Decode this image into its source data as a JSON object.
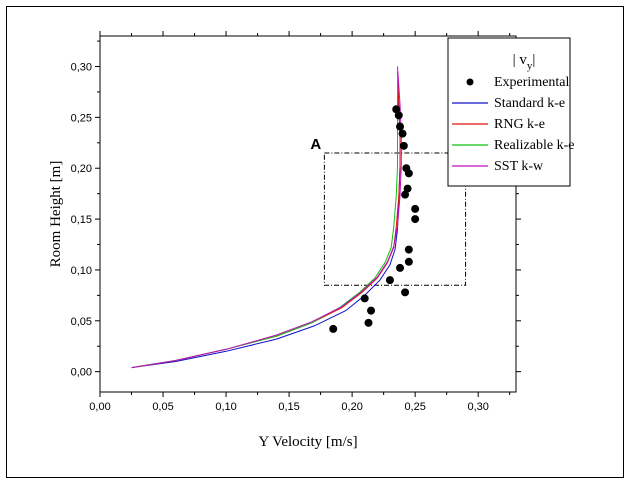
{
  "chart_data": {
    "type": "line",
    "title": "",
    "xlabel": "Y Velocity [m/s]",
    "ylabel": "Room Height [m]",
    "xlim": [
      0.0,
      0.33
    ],
    "ylim": [
      -0.02,
      0.33
    ],
    "x_ticks": [
      "0,00",
      "0,05",
      "0,10",
      "0,15",
      "0,20",
      "0,25",
      "0,30"
    ],
    "y_ticks": [
      "0,00",
      "0,05",
      "0,10",
      "0,15",
      "0,20",
      "0,25",
      "0,30"
    ],
    "x_tick_values": [
      0,
      0.05,
      0.1,
      0.15,
      0.2,
      0.25,
      0.3
    ],
    "y_tick_values": [
      0,
      0.05,
      0.1,
      0.15,
      0.2,
      0.25,
      0.3
    ],
    "grid": false,
    "legend_title_main": "| v",
    "legend_title_sub": "y",
    "legend_title_end": "|",
    "legend_position": "top-right",
    "annotation": {
      "label": "A",
      "x_range": [
        0.178,
        0.29
      ],
      "y_range": [
        0.085,
        0.215
      ]
    },
    "series": [
      {
        "name": "Experimental",
        "kind": "scatter",
        "color": "#000000",
        "x": [
          0.235,
          0.237,
          0.238,
          0.24,
          0.241,
          0.243,
          0.245,
          0.244,
          0.242,
          0.25,
          0.25,
          0.245,
          0.245,
          0.238,
          0.23,
          0.242,
          0.21,
          0.215,
          0.213,
          0.185
        ],
        "y": [
          0.258,
          0.252,
          0.241,
          0.234,
          0.222,
          0.2,
          0.195,
          0.18,
          0.174,
          0.16,
          0.15,
          0.12,
          0.108,
          0.102,
          0.09,
          0.078,
          0.072,
          0.06,
          0.048,
          0.042
        ]
      },
      {
        "name": "Standard k-e",
        "kind": "line",
        "color": "#1010c8",
        "x": [
          0.025,
          0.06,
          0.1,
          0.14,
          0.17,
          0.195,
          0.21,
          0.222,
          0.23,
          0.234,
          0.236,
          0.237,
          0.238,
          0.238,
          0.237,
          0.236
        ],
        "y": [
          0.004,
          0.01,
          0.02,
          0.032,
          0.045,
          0.06,
          0.075,
          0.09,
          0.105,
          0.12,
          0.14,
          0.17,
          0.2,
          0.23,
          0.26,
          0.29
        ]
      },
      {
        "name": "RNG k-e",
        "kind": "line",
        "color": "#e01010",
        "x": [
          0.025,
          0.06,
          0.1,
          0.14,
          0.168,
          0.192,
          0.208,
          0.22,
          0.228,
          0.233,
          0.235,
          0.237,
          0.238,
          0.238,
          0.237,
          0.236
        ],
        "y": [
          0.004,
          0.011,
          0.022,
          0.035,
          0.048,
          0.063,
          0.078,
          0.092,
          0.107,
          0.122,
          0.142,
          0.172,
          0.202,
          0.232,
          0.262,
          0.295
        ]
      },
      {
        "name": "Realizable k-e",
        "kind": "line",
        "color": "#10c010",
        "x": [
          0.025,
          0.06,
          0.1,
          0.14,
          0.168,
          0.19,
          0.206,
          0.218,
          0.226,
          0.231,
          0.233,
          0.235,
          0.236,
          0.236,
          0.236,
          0.236
        ],
        "y": [
          0.004,
          0.011,
          0.022,
          0.035,
          0.048,
          0.063,
          0.078,
          0.092,
          0.107,
          0.122,
          0.142,
          0.172,
          0.202,
          0.232,
          0.262,
          0.295
        ]
      },
      {
        "name": "SST k-w",
        "kind": "line",
        "color": "#c010c0",
        "x": [
          0.025,
          0.06,
          0.1,
          0.14,
          0.168,
          0.192,
          0.208,
          0.22,
          0.228,
          0.233,
          0.236,
          0.238,
          0.239,
          0.239,
          0.238,
          0.236
        ],
        "y": [
          0.004,
          0.011,
          0.022,
          0.036,
          0.049,
          0.064,
          0.079,
          0.093,
          0.108,
          0.123,
          0.143,
          0.173,
          0.203,
          0.233,
          0.263,
          0.3
        ]
      }
    ]
  }
}
